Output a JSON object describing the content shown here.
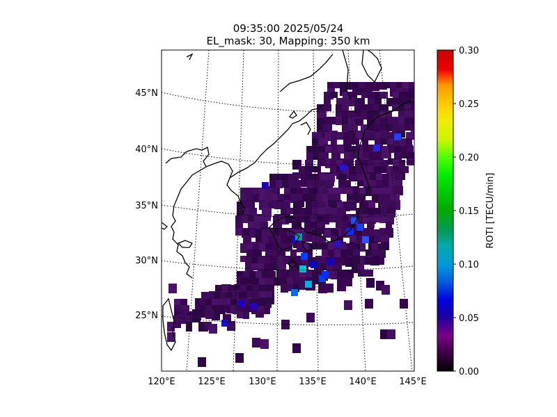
{
  "figure": {
    "title_line1": "09:35:00 2025/05/24",
    "title_line2": "EL_mask: 30, Mapping: 350 km"
  },
  "map": {
    "lon_ticks": [
      "120°E",
      "125°E",
      "130°E",
      "135°E",
      "140°E",
      "145°E"
    ],
    "lat_ticks": [
      "25°N",
      "30°N",
      "35°N",
      "40°N",
      "45°N"
    ],
    "lon_range": [
      120,
      145
    ],
    "lat_range": [
      20,
      49
    ],
    "graticule_style": "dotted",
    "base_color": "#3d0a57"
  },
  "colorbar": {
    "label": "ROTI [TECU/min]",
    "ticks": [
      "0.00",
      "0.05",
      "0.10",
      "0.15",
      "0.20",
      "0.25",
      "0.30"
    ],
    "range": [
      0,
      0.3
    ],
    "colormap": "nipy_spectral"
  }
}
